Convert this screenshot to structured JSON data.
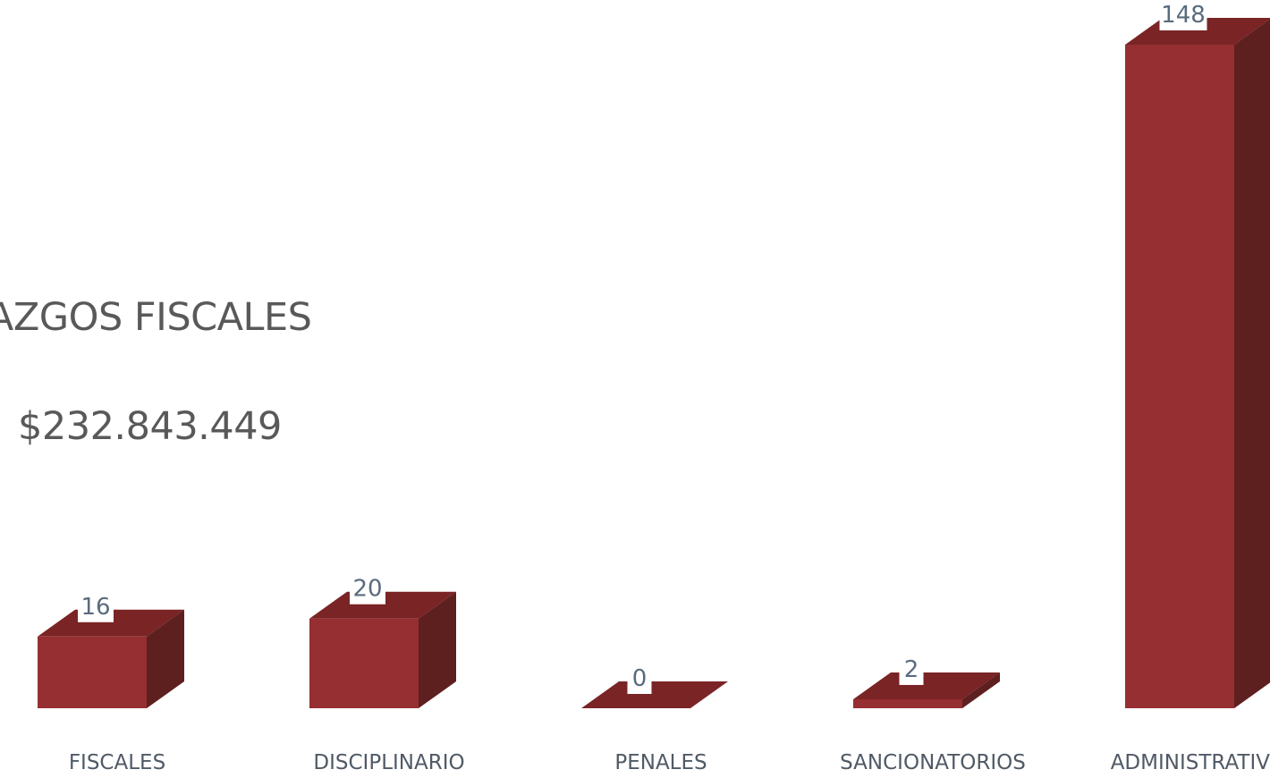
{
  "chart_data": {
    "type": "bar",
    "style": "3d-column",
    "categories": [
      "FISCALES",
      "DISCIPLINARIO",
      "PENALES",
      "SANCIONATORIOS",
      "ADMINISTRATIVOS"
    ],
    "values": [
      16,
      20,
      0,
      2,
      148
    ],
    "data_labels": [
      "16",
      "20",
      "0",
      "2",
      "148"
    ],
    "title": "",
    "xlabel": "",
    "ylabel": "",
    "ylim": [
      0,
      148
    ],
    "grid": false,
    "legend": "none"
  },
  "overlay": {
    "title_fragment": "LLAZGOS FISCALES",
    "amount": "$232.843.449"
  },
  "colors": {
    "bar_front": "#952F31",
    "bar_top": "#7A2426",
    "bar_side": "#5E1F1F",
    "label_text": "#5A6B7D",
    "category_text": "#505A66",
    "overlay_text": "#595959"
  }
}
